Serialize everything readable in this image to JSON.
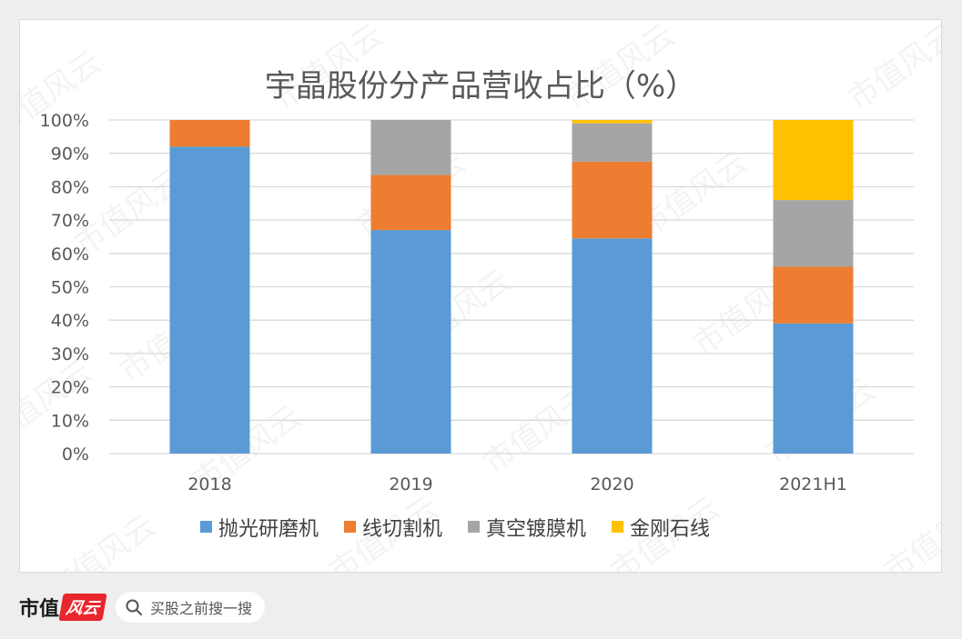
{
  "brand": {
    "name": "市值",
    "mark": "风云",
    "search_placeholder": "买股之前搜一搜",
    "watermark": "市值风云"
  },
  "chart_data": {
    "type": "bar",
    "stacked": true,
    "title": "宇晶股份分产品营收占比（%）",
    "categories": [
      "2018",
      "2019",
      "2020",
      "2021H1"
    ],
    "ylim": [
      0,
      100
    ],
    "yticks": [
      "0%",
      "10%",
      "20%",
      "30%",
      "40%",
      "50%",
      "60%",
      "70%",
      "80%",
      "90%",
      "100%"
    ],
    "grid": true,
    "legend_position": "bottom",
    "series": [
      {
        "name": "抛光研磨机",
        "color": "#5b9bd5",
        "values": [
          92,
          67,
          64.5,
          39
        ]
      },
      {
        "name": "线切割机",
        "color": "#ed7d31",
        "values": [
          8,
          16.5,
          23,
          17
        ]
      },
      {
        "name": "真空镀膜机",
        "color": "#a5a5a5",
        "values": [
          0,
          16.5,
          11.5,
          20
        ]
      },
      {
        "name": "金刚石线",
        "color": "#ffc000",
        "values": [
          0,
          0,
          1,
          24
        ]
      }
    ]
  }
}
